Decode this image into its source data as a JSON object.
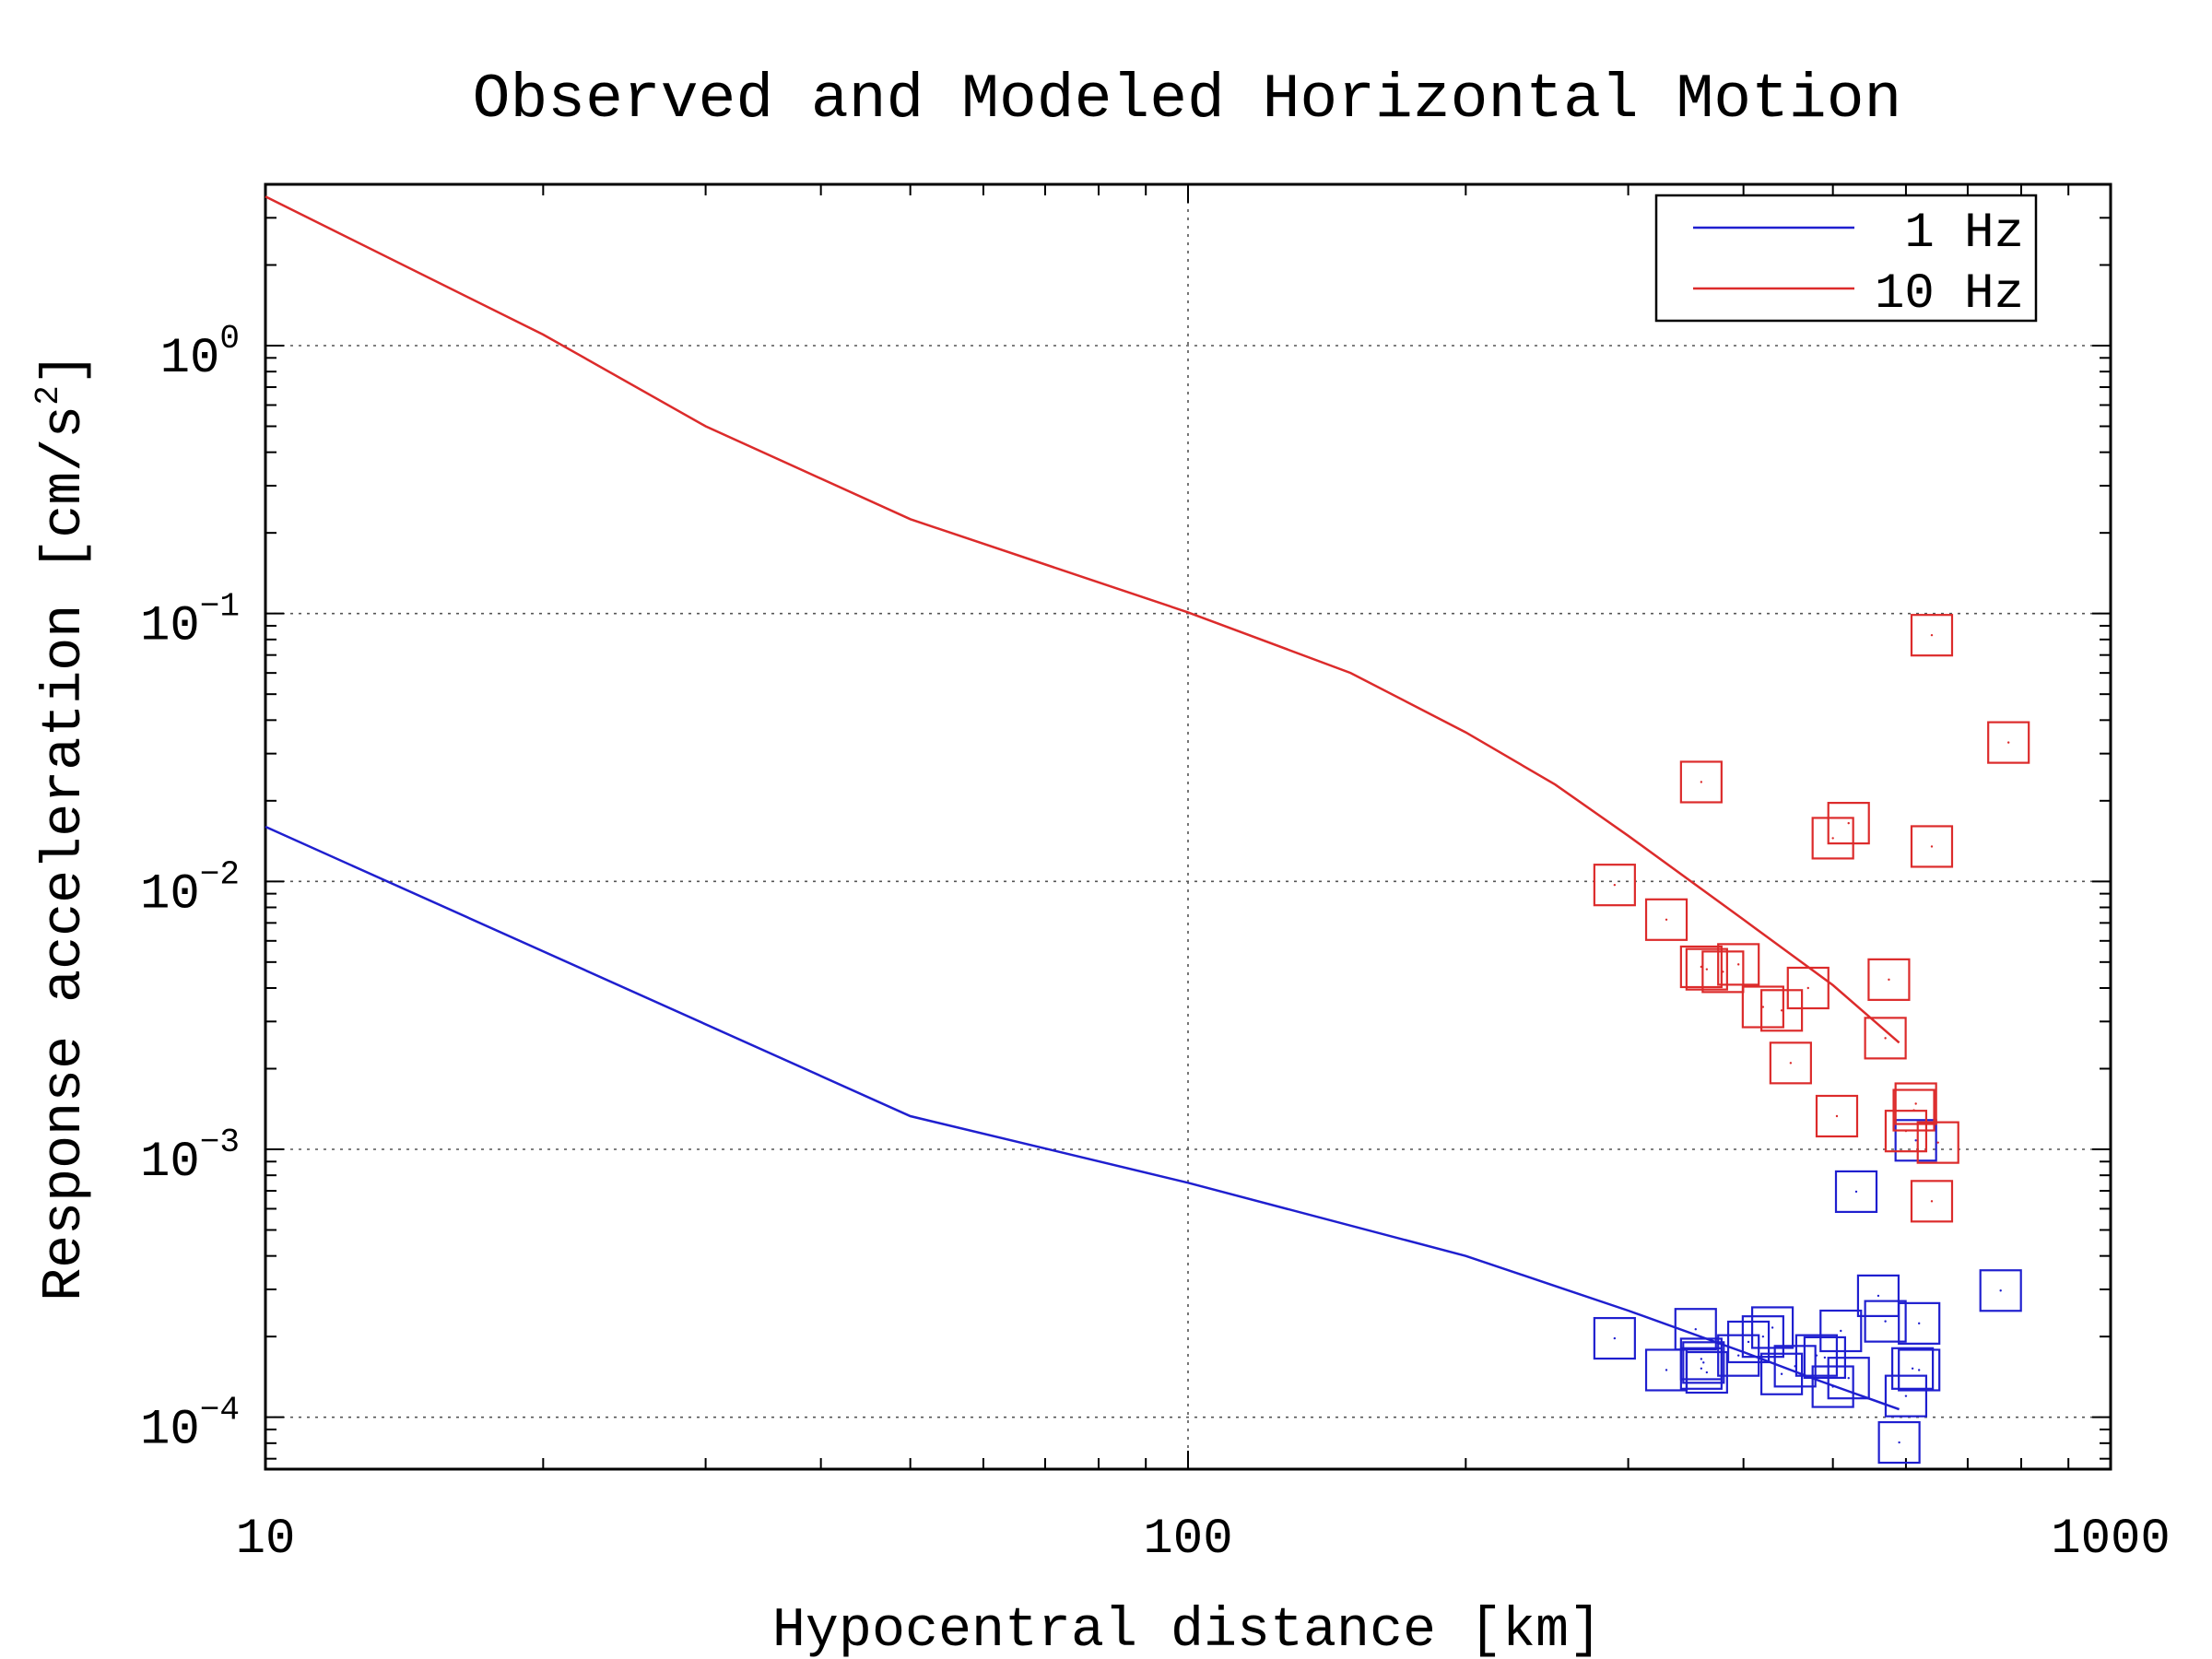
{
  "chart_data": {
    "type": "scatter",
    "title": "Observed and Modeled Horizontal Motion",
    "xlabel": "Hypocentral distance [km]",
    "ylabel": "Response acceleration [cm/s",
    "ylabel_sup": "2",
    "ylabel_close": "]",
    "xscale": "log",
    "yscale": "log",
    "xlim": [
      10,
      1000
    ],
    "ylim": [
      6.4e-05,
      4.0
    ],
    "x_ticks": [
      {
        "value": 10,
        "label": "10"
      },
      {
        "value": 100,
        "label": "100"
      },
      {
        "value": 1000,
        "label": "1000"
      }
    ],
    "y_ticks": [
      {
        "value": 1,
        "base": "10",
        "exp": "0"
      },
      {
        "value": 0.1,
        "base": "10",
        "exp": "−1"
      },
      {
        "value": 0.01,
        "base": "10",
        "exp": "−2"
      },
      {
        "value": 0.001,
        "base": "10",
        "exp": "−3"
      },
      {
        "value": 0.0001,
        "base": "10",
        "exp": "−4"
      }
    ],
    "grid": true,
    "legend_position": "top-right",
    "series": [
      {
        "name": "1 Hz",
        "color": "#1f1fcf",
        "model": {
          "x": [
            10,
            50,
            100,
            200,
            300,
            400,
            480,
            520,
            590
          ],
          "y": [
            0.016,
            0.00133,
            0.00075,
            0.0004,
            0.00025,
            0.000175,
            0.000138,
            0.000125,
            0.000107
          ]
        },
        "observed": {
          "x": [
            290,
            330,
            355,
            360,
            360,
            362,
            365,
            395,
            405,
            420,
            430,
            440,
            455,
            480,
            490,
            500,
            510,
            520,
            560,
            570,
            590,
            600,
            610,
            620,
            760,
            620
          ],
          "y": [
            0.000197,
            0.00015,
            0.000213,
            0.000152,
            0.000165,
            0.00016,
            0.000147,
            0.00017,
            0.000191,
            0.0002,
            0.000216,
            0.000145,
            0.000155,
            0.00017,
            0.000167,
            0.00013,
            0.00021,
            0.00014,
            0.000284,
            0.000228,
            8.05e-05,
            0.00012,
            0.000152,
            0.000224,
            0.000297,
            0.00015
          ]
        },
        "observed_extra": {
          "x": [
            530,
            615
          ],
          "y": [
            0.000695,
            0.00108
          ]
        }
      },
      {
        "name": "10 Hz",
        "color": "#dc2b2b",
        "model": {
          "x": [
            10,
            20,
            30,
            50,
            100,
            150,
            200,
            250,
            300,
            400,
            500,
            590
          ],
          "y": [
            3.6,
            1.1,
            0.5,
            0.225,
            0.101,
            0.06,
            0.036,
            0.023,
            0.0148,
            0.0072,
            0.0041,
            0.0025
          ]
        },
        "observed": {
          "x": [
            290,
            330,
            360,
            365,
            380,
            395,
            420,
            440,
            450,
            470,
            500,
            505,
            520,
            570,
            575,
            600,
            612,
            615,
            640,
            640,
            650,
            775,
            360
          ],
          "y": [
            0.0097,
            0.0072,
            0.0048,
            0.0047,
            0.0046,
            0.0049,
            0.0034,
            0.0033,
            0.0021,
            0.004,
            0.0145,
            0.00133,
            0.0165,
            0.0026,
            0.0043,
            0.00117,
            0.0014,
            0.00148,
            0.00064,
            0.0135,
            0.00106,
            0.033,
            0.0235
          ]
        }
      }
    ],
    "observed_extra_red": {
      "x": [
        640
      ],
      "y": [
        0.083
      ]
    }
  }
}
